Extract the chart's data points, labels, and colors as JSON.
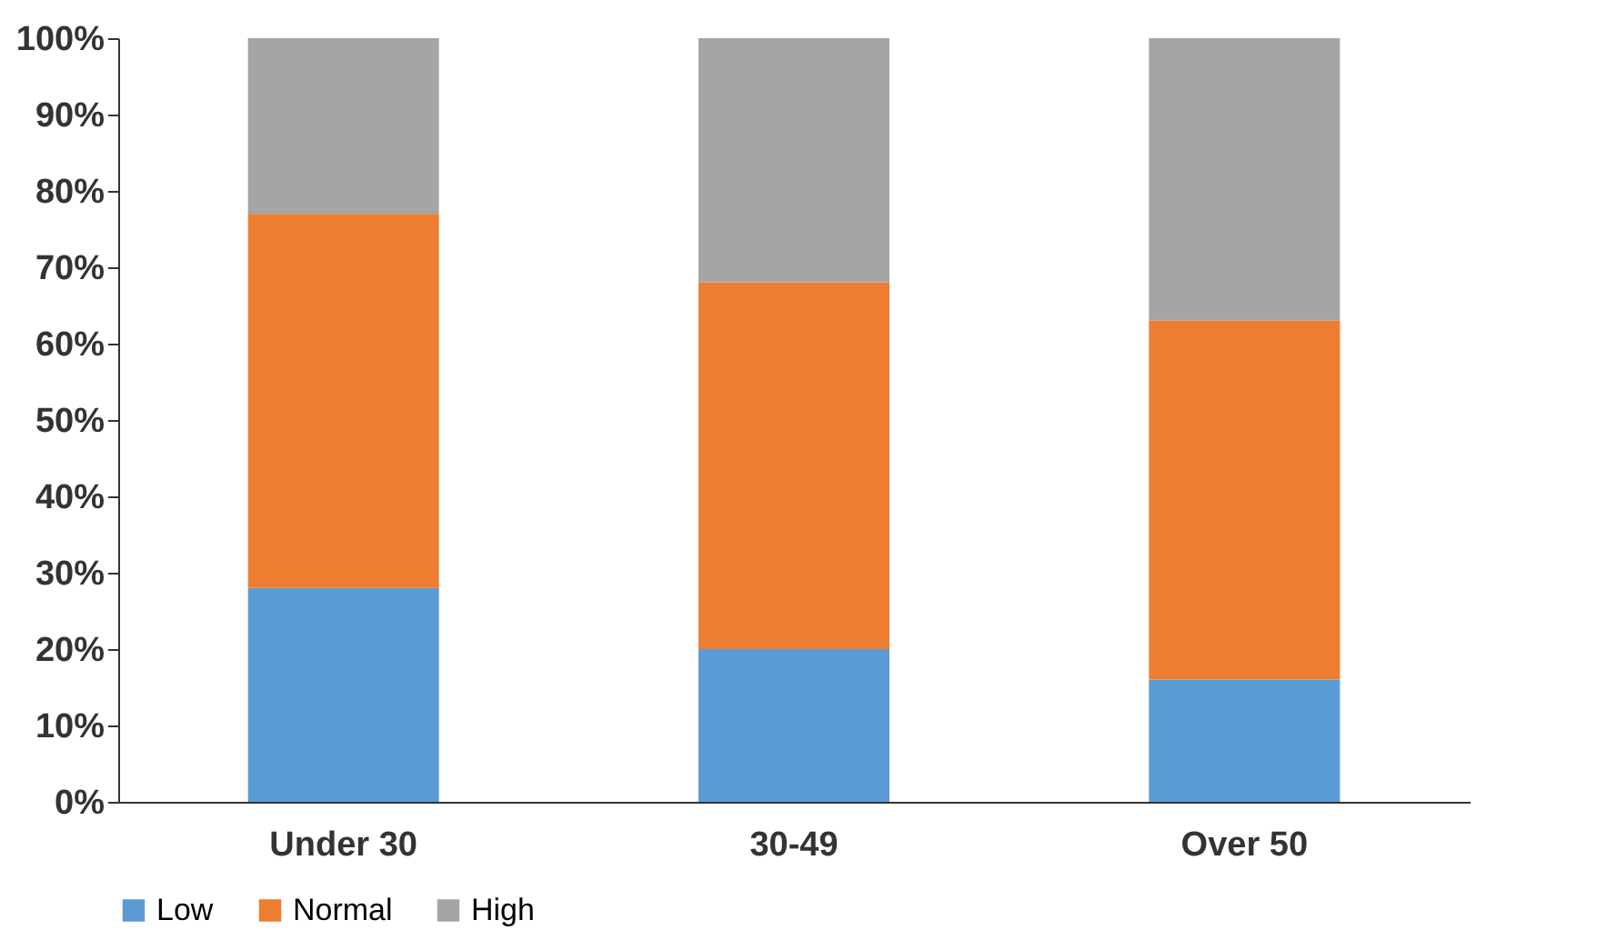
{
  "chart_data": {
    "type": "bar",
    "stacked": true,
    "categories": [
      "Under 30",
      "30-49",
      "Over 50"
    ],
    "series": [
      {
        "name": "Low",
        "color": "#5b9bd5",
        "values": [
          28,
          20,
          16
        ]
      },
      {
        "name": "Normal",
        "color": "#ed7d31",
        "values": [
          49,
          48,
          47
        ]
      },
      {
        "name": "High",
        "color": "#a5a5a5",
        "values": [
          23,
          32,
          37
        ]
      }
    ],
    "ylim": [
      0,
      100
    ],
    "yticks": [
      {
        "value": 0,
        "label": "0%"
      },
      {
        "value": 10,
        "label": "10%"
      },
      {
        "value": 20,
        "label": "20%"
      },
      {
        "value": 30,
        "label": "30%"
      },
      {
        "value": 40,
        "label": "40%"
      },
      {
        "value": 50,
        "label": "50%"
      },
      {
        "value": 60,
        "label": "60%"
      },
      {
        "value": 70,
        "label": "70%"
      },
      {
        "value": 80,
        "label": "80%"
      },
      {
        "value": 90,
        "label": "90%"
      },
      {
        "value": 100,
        "label": "100%"
      }
    ],
    "grid": false,
    "legend": "bottom"
  }
}
